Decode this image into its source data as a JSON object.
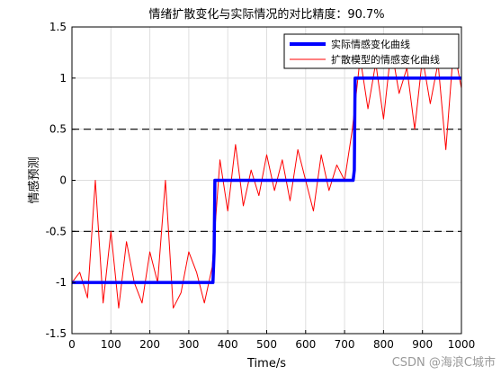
{
  "chart_data": {
    "type": "line",
    "title": "情绪扩散变化与实际情况的对比精度：90.7%",
    "xlabel": "Time/s",
    "ylabel": "情感预测",
    "xlim": [
      0,
      1000
    ],
    "ylim": [
      -1.5,
      1.5
    ],
    "xticks": [
      0,
      100,
      200,
      300,
      400,
      500,
      600,
      700,
      800,
      900,
      1000
    ],
    "yticks": [
      -1.5,
      -1,
      -0.5,
      0,
      0.5,
      1,
      1.5
    ],
    "grid": true,
    "legend_position": "top-right",
    "reference_lines": [
      {
        "y": 0.5,
        "style": "dashed",
        "color": "#000000"
      },
      {
        "y": -0.5,
        "style": "dashed",
        "color": "#000000"
      }
    ],
    "series": [
      {
        "name": "实际情感变化曲线",
        "color": "#0000ff",
        "x": [
          0,
          362,
          365,
          367,
          722,
          725,
          727,
          1000
        ],
        "y": [
          -1,
          -1,
          -0.7,
          0,
          0,
          0.1,
          1,
          1
        ]
      },
      {
        "name": "扩散模型的情感变化曲线",
        "color": "#ff0000",
        "x": [
          0,
          20,
          40,
          60,
          80,
          100,
          120,
          140,
          160,
          180,
          200,
          220,
          240,
          260,
          280,
          300,
          320,
          340,
          360,
          380,
          400,
          420,
          440,
          460,
          480,
          500,
          520,
          540,
          560,
          580,
          600,
          620,
          640,
          660,
          680,
          700,
          720,
          740,
          760,
          780,
          800,
          820,
          840,
          860,
          880,
          900,
          920,
          940,
          960,
          980,
          1000
        ],
        "y": [
          -1.0,
          -0.9,
          -1.15,
          0.0,
          -1.2,
          -0.5,
          -1.25,
          -0.6,
          -1.0,
          -1.2,
          -0.7,
          -1.0,
          0.0,
          -1.25,
          -1.1,
          -0.7,
          -0.9,
          -1.2,
          -0.85,
          0.2,
          -0.3,
          0.35,
          -0.25,
          0.1,
          -0.15,
          0.25,
          -0.1,
          0.2,
          -0.2,
          0.3,
          0.0,
          -0.3,
          0.25,
          -0.1,
          0.15,
          0.0,
          0.5,
          1.2,
          0.7,
          1.15,
          0.6,
          1.3,
          0.85,
          1.1,
          0.5,
          1.2,
          0.75,
          1.15,
          0.3,
          1.3,
          0.9
        ]
      }
    ]
  },
  "watermark": "CSDN @海浪C城市"
}
